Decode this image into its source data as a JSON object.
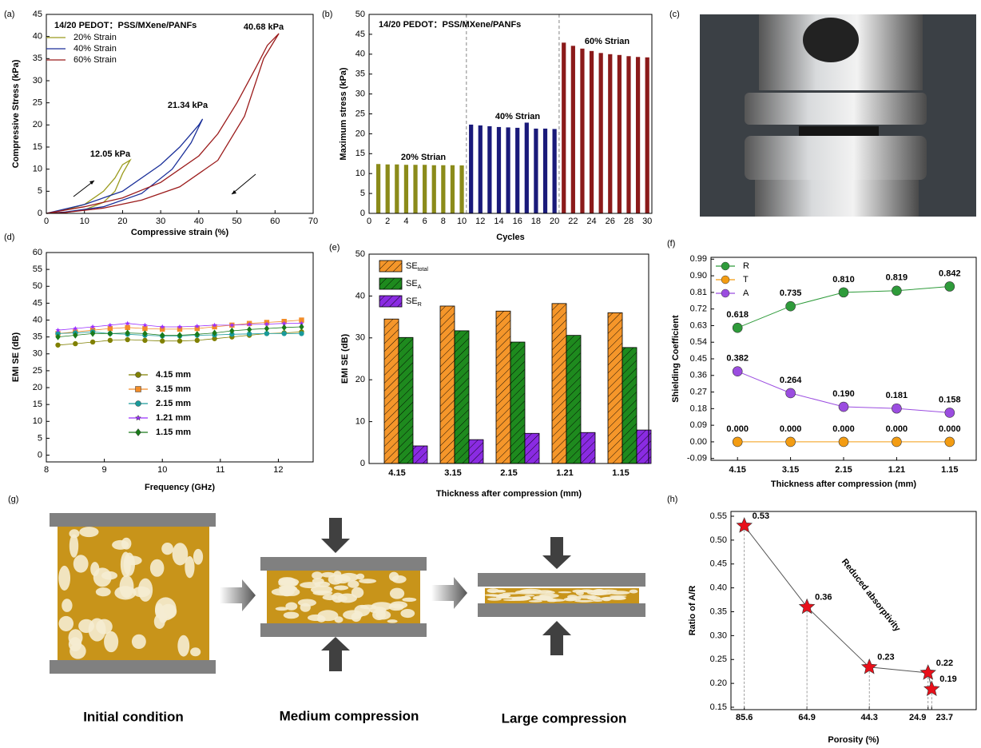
{
  "chart_data": [
    {
      "type": "line",
      "panel_label": "(a)",
      "legend_title": "14/20 PEDOT：PSS/MXene/PANFs",
      "legend": "upper left",
      "x_label": "Compressive strain (%)",
      "y_label": "Compressive Stress (kPa)",
      "xlim": [
        0,
        70
      ],
      "ylim": [
        0,
        45
      ],
      "xticks": [
        0,
        10,
        20,
        30,
        40,
        50,
        60,
        70
      ],
      "yticks": [
        0,
        5,
        10,
        15,
        20,
        25,
        30,
        35,
        40,
        45
      ],
      "annotations": [
        "12.05 kPa",
        "21.34 kPa",
        "40.68 kPa"
      ],
      "series": [
        {
          "name": "20% Strain",
          "color": "#9b9b1e",
          "x": [
            0,
            5,
            10,
            15,
            18,
            20,
            22,
            20,
            18,
            15,
            10,
            5,
            0
          ],
          "values": [
            0,
            0.8,
            2,
            5,
            8,
            11,
            12.05,
            9,
            5,
            2.5,
            0.8,
            0.2,
            0
          ]
        },
        {
          "name": "40% Strain",
          "color": "#1a2f99",
          "x": [
            0,
            10,
            20,
            30,
            35,
            40,
            41,
            38,
            33,
            25,
            15,
            5,
            0
          ],
          "values": [
            0,
            2,
            5,
            11,
            15,
            20,
            21.34,
            16,
            10,
            4.5,
            1.5,
            0.3,
            0
          ]
        },
        {
          "name": "60% Strain",
          "color": "#9b1b1b",
          "x": [
            0,
            10,
            20,
            30,
            40,
            45,
            50,
            55,
            58,
            61,
            57,
            52,
            45,
            35,
            25,
            15,
            5,
            0
          ],
          "values": [
            0,
            1.5,
            3.5,
            7,
            13,
            18,
            25,
            33,
            38,
            40.68,
            35,
            22,
            12,
            6,
            3,
            1.2,
            0.2,
            0
          ]
        }
      ]
    },
    {
      "type": "bar",
      "panel_label": "(b)",
      "title": "14/20 PEDOT：PSS/MXene/PANFs",
      "x_label": "Cycles",
      "y_label": "Maximum stress (kPa)",
      "xlim": [
        0,
        30.5
      ],
      "ylim": [
        0,
        50
      ],
      "xticks": [
        0,
        2,
        4,
        6,
        8,
        10,
        12,
        14,
        16,
        18,
        20,
        22,
        24,
        26,
        28,
        30
      ],
      "yticks": [
        0,
        5,
        10,
        15,
        20,
        25,
        30,
        35,
        40,
        45,
        50
      ],
      "annotations": [
        "20% Strian",
        "40% Strian",
        "60% Strian"
      ],
      "series": [
        {
          "color": "#8b8b1a",
          "x": [
            1,
            2,
            3,
            4,
            5,
            6,
            7,
            8,
            9,
            10
          ],
          "values": [
            12.4,
            12.3,
            12.3,
            12.2,
            12.2,
            12.2,
            12.1,
            12.1,
            12.1,
            12.05
          ]
        },
        {
          "color": "#1a1a7a",
          "x": [
            11,
            12,
            13,
            14,
            15,
            16,
            17,
            18,
            19,
            20
          ],
          "values": [
            22.3,
            22.1,
            21.9,
            21.7,
            21.6,
            21.5,
            22.8,
            21.3,
            21.3,
            21.2
          ]
        },
        {
          "color": "#8b1a1a",
          "x": [
            21,
            22,
            23,
            24,
            25,
            26,
            27,
            28,
            29,
            30
          ],
          "values": [
            42.9,
            42.1,
            41.4,
            40.8,
            40.3,
            40.0,
            39.8,
            39.5,
            39.3,
            39.2
          ]
        }
      ]
    },
    {
      "type": "scatter",
      "panel_label": "(d)",
      "x_label": "Frequency (GHz)",
      "y_label": "EMI SE (dB)",
      "legend": "center left",
      "xlim": [
        8,
        12.6
      ],
      "ylim": [
        -2,
        60
      ],
      "xticks": [
        8,
        9,
        10,
        11,
        12
      ],
      "yticks": [
        0,
        5,
        10,
        15,
        20,
        25,
        30,
        35,
        40,
        45,
        50,
        55,
        60
      ],
      "x": [
        8.2,
        8.5,
        8.8,
        9.1,
        9.4,
        9.7,
        10.0,
        10.3,
        10.6,
        10.9,
        11.2,
        11.5,
        11.8,
        12.1,
        12.4
      ],
      "series": [
        {
          "name": "4.15 mm",
          "color": "#808000",
          "marker": "circle",
          "values": [
            32.6,
            33,
            33.5,
            34,
            34.2,
            34,
            33.8,
            33.8,
            34,
            34.5,
            35,
            35.5,
            36,
            36.2,
            36.5
          ]
        },
        {
          "name": "3.15 mm",
          "color": "#f28c28",
          "marker": "square",
          "values": [
            36,
            36.5,
            37,
            37.5,
            37.8,
            37.5,
            37.3,
            37.3,
            37.5,
            38,
            38.5,
            39,
            39.3,
            39.6,
            40
          ]
        },
        {
          "name": "2.15 mm",
          "color": "#1a9a9a",
          "marker": "circle",
          "values": [
            36,
            36.2,
            36.5,
            36,
            35.8,
            35.5,
            35.3,
            35.3,
            35.5,
            35.6,
            35.8,
            35.9,
            36,
            36,
            36
          ]
        },
        {
          "name": "1.21 mm",
          "color": "#9b30ff",
          "marker": "star",
          "values": [
            37,
            37.5,
            38,
            38.5,
            39,
            38.5,
            38,
            38,
            38.2,
            38.5,
            38.5,
            38.7,
            38.8,
            39,
            39
          ]
        },
        {
          "name": "1.15 mm",
          "color": "#1a7a1a",
          "marker": "diamond",
          "values": [
            35,
            35.5,
            36,
            36,
            36.2,
            36,
            35.5,
            35.5,
            35.8,
            36.2,
            36.8,
            37.2,
            37.5,
            37.8,
            38
          ]
        }
      ]
    },
    {
      "type": "bar",
      "panel_label": "(e)",
      "x_label": "Thickness after compression (mm)",
      "y_label": "EMI SE (dB)",
      "legend": "upper left",
      "hatch": true,
      "categories": [
        "4.15",
        "3.15",
        "2.15",
        "1.21",
        "1.15"
      ],
      "ylim": [
        0,
        50
      ],
      "yticks": [
        0,
        10,
        20,
        30,
        40,
        50
      ],
      "series": [
        {
          "name": "SE",
          "subscript": "total",
          "color": "#f5962a",
          "values": [
            34.5,
            37.6,
            36.4,
            38.2,
            36
          ]
        },
        {
          "name": "SE",
          "subscript": "A",
          "color": "#1e8a1e",
          "values": [
            30.1,
            31.7,
            29,
            30.6,
            27.7
          ]
        },
        {
          "name": "SE",
          "subscript": "R",
          "color": "#8a2be2",
          "values": [
            4.2,
            5.7,
            7.2,
            7.4,
            8
          ]
        }
      ]
    },
    {
      "type": "line",
      "panel_label": "(f)",
      "x_label": "Thickness after compression (mm)",
      "y_label": "Shielding Coefficient",
      "legend": "upper left",
      "categories": [
        "4.15",
        "3.15",
        "2.15",
        "1.21",
        "1.15"
      ],
      "ylim": [
        -0.1,
        1.0
      ],
      "yticks": [
        -0.09,
        {
          "value": 0,
          "label": "0.00"
        },
        0.09,
        0.18,
        0.27,
        0.36,
        0.45,
        0.54,
        0.63,
        0.72,
        0.81,
        {
          "value": 0.9,
          "label": "0.90"
        },
        0.99
      ],
      "series": [
        {
          "name": "R",
          "color": "#2e9b3a",
          "marker": "circle",
          "values": [
            0.618,
            0.735,
            0.81,
            0.819,
            0.842
          ],
          "value_labels": [
            "0.618",
            "0.735",
            "0.810",
            "0.819",
            "0.842"
          ]
        },
        {
          "name": "T",
          "color": "#f39c12",
          "marker": "circle",
          "values": [
            0,
            0,
            0,
            0,
            0
          ],
          "value_labels": [
            "0.000",
            "0.000",
            "0.000",
            "0.000",
            "0.000"
          ]
        },
        {
          "name": "A",
          "color": "#9b4de0",
          "marker": "circle",
          "values": [
            0.382,
            0.264,
            0.19,
            0.181,
            0.158
          ],
          "value_labels": [
            "0.382",
            "0.264",
            "0.190",
            "0.181",
            "0.158"
          ]
        }
      ]
    },
    {
      "type": "line",
      "panel_label": "(h)",
      "x_label": "Porosity (%)",
      "y_label": "Ratio of A/R",
      "drop_lines": true,
      "xlim": [
        90,
        9
      ],
      "ylim": [
        0.145,
        0.56
      ],
      "xticks": [
        85.6,
        64.9,
        44.3,
        24.9,
        23.7
      ],
      "yticks": [
        0.15,
        {
          "value": 0.2,
          "label": "0.20"
        },
        0.25,
        {
          "value": 0.3,
          "label": "0.30"
        },
        0.35,
        {
          "value": 0.4,
          "label": "0.40"
        },
        0.45,
        {
          "value": 0.5,
          "label": "0.50"
        },
        0.55
      ],
      "annotations": [
        "Reduced absorptivity"
      ],
      "x": [
        85.6,
        64.9,
        44.3,
        24.9,
        23.7
      ],
      "series": [
        {
          "color": "#e8101a",
          "marker": "star",
          "values": [
            0.53,
            0.36,
            0.234,
            0.222,
            0.188
          ],
          "value_labels": [
            "0.53",
            "0.36",
            "0.23",
            "0.22",
            "0.19"
          ]
        }
      ]
    }
  ],
  "photo_panel": {
    "label": "(c)"
  },
  "diagram_panel": {
    "label": "(g)",
    "stages": [
      "Initial condition",
      "Medium compression",
      "Large compression"
    ]
  }
}
